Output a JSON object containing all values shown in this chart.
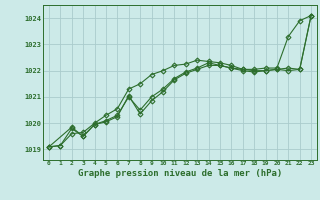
{
  "background_color": "#cceae8",
  "grid_color": "#aacccc",
  "line_color": "#2d6e2d",
  "marker_color": "#2d6e2d",
  "xlabel": "Graphe pression niveau de la mer (hPa)",
  "xlabel_fontsize": 6.5,
  "ylabel_ticks": [
    1019,
    1020,
    1021,
    1022,
    1023,
    1024
  ],
  "xlim": [
    -0.5,
    23.5
  ],
  "ylim": [
    1018.6,
    1024.5
  ],
  "x_ticks": [
    0,
    1,
    2,
    3,
    4,
    5,
    6,
    7,
    8,
    9,
    10,
    11,
    12,
    13,
    14,
    15,
    16,
    17,
    18,
    19,
    20,
    21,
    22,
    23
  ],
  "line1_x": [
    0,
    1,
    2,
    3,
    4,
    5,
    6,
    7,
    8,
    9,
    10,
    11,
    12,
    13,
    14,
    15,
    16,
    17,
    18,
    19,
    20,
    21,
    22,
    23
  ],
  "line1_y": [
    1019.1,
    1019.15,
    1019.6,
    1019.65,
    1020.0,
    1020.3,
    1020.55,
    1021.3,
    1021.5,
    1021.85,
    1022.0,
    1022.2,
    1022.25,
    1022.4,
    1022.35,
    1022.3,
    1022.2,
    1022.05,
    1022.05,
    1022.1,
    1022.1,
    1023.3,
    1023.9,
    1024.1
  ],
  "line2_x": [
    0,
    1,
    2,
    3,
    4,
    5,
    6,
    7,
    8,
    9,
    10,
    11,
    12,
    13,
    14,
    15,
    16,
    17,
    18,
    19,
    20,
    21,
    22,
    23
  ],
  "line2_y": [
    1019.1,
    1019.15,
    1019.8,
    1019.5,
    1019.95,
    1020.05,
    1020.25,
    1021.05,
    1020.35,
    1020.85,
    1021.2,
    1021.65,
    1021.9,
    1022.05,
    1022.2,
    1022.2,
    1022.1,
    1022.05,
    1022.0,
    1022.0,
    1022.05,
    1022.1,
    1022.05,
    1024.1
  ],
  "line3_x": [
    0,
    2,
    3,
    4,
    5,
    6,
    7,
    8,
    9,
    10,
    11,
    12,
    13,
    14,
    15,
    16,
    17,
    18,
    19,
    20,
    21,
    22,
    23
  ],
  "line3_y": [
    1019.1,
    1019.85,
    1019.5,
    1019.95,
    1020.1,
    1020.3,
    1021.0,
    1020.5,
    1021.0,
    1021.3,
    1021.7,
    1021.95,
    1022.1,
    1022.3,
    1022.2,
    1022.1,
    1022.0,
    1021.95,
    1022.0,
    1022.05,
    1022.0,
    1022.05,
    1024.1
  ]
}
